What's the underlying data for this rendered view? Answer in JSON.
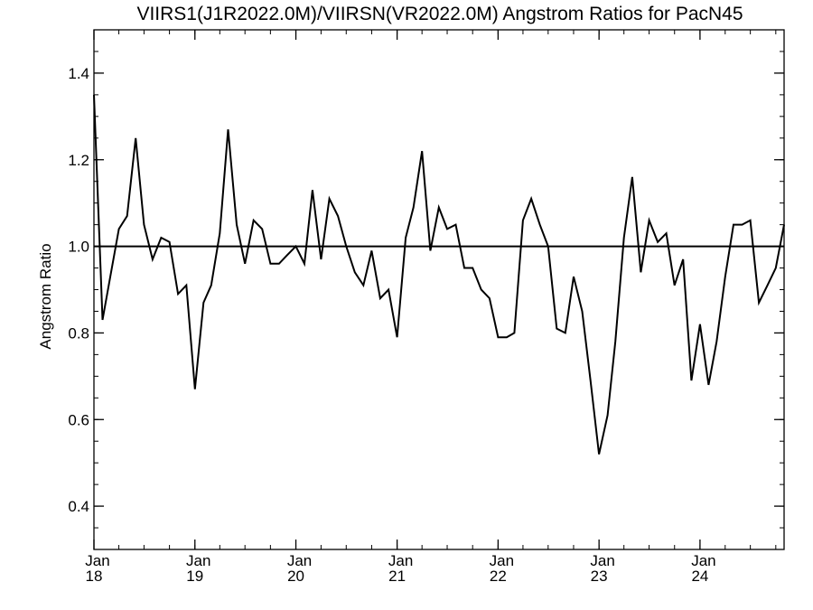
{
  "chart_data": {
    "type": "line",
    "title": "VIIRS1(J1R2022.0M)/VIIRSN(VR2022.0M)  Angstrom Ratios for PacN45",
    "xlabel": "",
    "ylabel": "Angstrom Ratio",
    "ylim": [
      0.3,
      1.5
    ],
    "yticks": [
      0.4,
      0.6,
      0.8,
      1.0,
      1.2,
      1.4
    ],
    "ytick_labels": [
      "0.4",
      "0.6",
      "0.8",
      "1.0",
      "1.2",
      "1.4"
    ],
    "xlim": [
      "2018-01-01",
      "2024-10-31"
    ],
    "xticks": [
      {
        "date": "2018-01-01",
        "month": "Jan",
        "year": "18"
      },
      {
        "date": "2019-01-01",
        "month": "Jan",
        "year": "19"
      },
      {
        "date": "2020-01-01",
        "month": "Jan",
        "year": "20"
      },
      {
        "date": "2021-01-01",
        "month": "Jan",
        "year": "21"
      },
      {
        "date": "2022-01-01",
        "month": "Jan",
        "year": "22"
      },
      {
        "date": "2023-01-01",
        "month": "Jan",
        "year": "23"
      },
      {
        "date": "2024-01-01",
        "month": "Jan",
        "year": "24"
      }
    ],
    "reference_line": 1.0,
    "grid": false,
    "series": [
      {
        "color": "#000000",
        "x": [
          "2018-01-01",
          "2018-02-01",
          "2018-03-01",
          "2018-04-01",
          "2018-05-01",
          "2018-06-01",
          "2018-07-01",
          "2018-08-01",
          "2018-09-01",
          "2018-10-01",
          "2018-11-01",
          "2018-12-01",
          "2019-01-01",
          "2019-02-01",
          "2019-03-01",
          "2019-04-01",
          "2019-05-01",
          "2019-06-01",
          "2019-07-01",
          "2019-08-01",
          "2019-09-01",
          "2019-10-01",
          "2019-11-01",
          "2019-12-01",
          "2020-01-01",
          "2020-02-01",
          "2020-03-01",
          "2020-04-01",
          "2020-05-01",
          "2020-06-01",
          "2020-07-01",
          "2020-08-01",
          "2020-09-01",
          "2020-10-01",
          "2020-11-01",
          "2020-12-01",
          "2021-01-01",
          "2021-02-01",
          "2021-03-01",
          "2021-04-01",
          "2021-05-01",
          "2021-06-01",
          "2021-07-01",
          "2021-08-01",
          "2021-09-01",
          "2021-10-01",
          "2021-11-01",
          "2021-12-01",
          "2022-01-01",
          "2022-02-01",
          "2022-03-01",
          "2022-04-01",
          "2022-05-01",
          "2022-06-01",
          "2022-07-01",
          "2022-08-01",
          "2022-09-01",
          "2022-10-01",
          "2022-11-01",
          "2022-12-01",
          "2023-01-01",
          "2023-02-01",
          "2023-03-01",
          "2023-04-01",
          "2023-05-01",
          "2023-06-01",
          "2023-07-01",
          "2023-08-01",
          "2023-09-01",
          "2023-10-01",
          "2023-11-01",
          "2023-12-01",
          "2024-01-01",
          "2024-02-01",
          "2024-03-01",
          "2024-04-01",
          "2024-05-01",
          "2024-06-01",
          "2024-07-01",
          "2024-08-01",
          "2024-09-01",
          "2024-10-01",
          "2024-10-31"
        ],
        "values": [
          1.35,
          0.83,
          0.93,
          1.04,
          1.07,
          1.25,
          1.05,
          0.97,
          1.02,
          1.01,
          0.89,
          0.91,
          0.67,
          0.87,
          0.91,
          1.03,
          1.27,
          1.05,
          0.96,
          1.06,
          1.04,
          0.96,
          0.96,
          0.98,
          1.0,
          0.96,
          1.13,
          0.97,
          1.11,
          1.07,
          1.0,
          0.94,
          0.91,
          0.99,
          0.88,
          0.9,
          0.79,
          1.02,
          1.09,
          1.22,
          0.99,
          1.09,
          1.04,
          1.05,
          0.95,
          0.95,
          0.9,
          0.88,
          0.79,
          0.79,
          0.8,
          1.06,
          1.11,
          1.05,
          1.0,
          0.81,
          0.8,
          0.93,
          0.85,
          0.69,
          0.52,
          0.61,
          0.78,
          1.02,
          1.16,
          0.94,
          1.06,
          1.01,
          1.03,
          0.91,
          0.97,
          0.69,
          0.82,
          0.68,
          0.78,
          0.93,
          1.05,
          1.05,
          1.06,
          0.87,
          0.91,
          0.95,
          1.05
        ]
      }
    ]
  }
}
